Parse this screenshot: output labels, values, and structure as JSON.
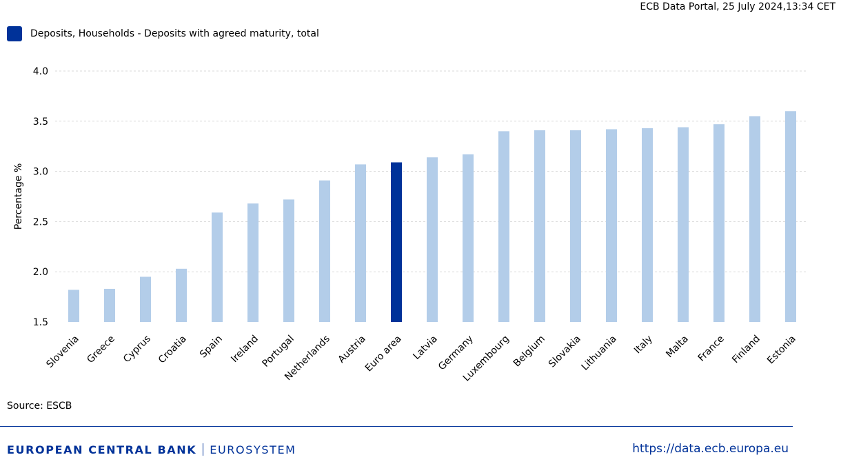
{
  "header": {
    "timestamp": "ECB Data Portal, 25 July 2024,13:34 CET"
  },
  "legend": {
    "label": "Deposits, Households - Deposits with agreed maturity, total",
    "color": "#003299"
  },
  "chart_data": {
    "type": "bar",
    "title": "",
    "xlabel": "",
    "ylabel": "Percentage %",
    "ylim": [
      1.5,
      4.0
    ],
    "yticks": [
      "1.5",
      "2.0",
      "2.5",
      "3.0",
      "3.5",
      "4.0"
    ],
    "grid": true,
    "categories": [
      "Slovenia",
      "Greece",
      "Cyprus",
      "Croatia",
      "Spain",
      "Ireland",
      "Portugal",
      "Netherlands",
      "Austria",
      "Euro area",
      "Latvia",
      "Germany",
      "Luxembourg",
      "Belgium",
      "Slovakia",
      "Lithuania",
      "Italy",
      "Malta",
      "France",
      "Finland",
      "Estonia"
    ],
    "series": [
      {
        "name": "Deposits, Households - Deposits with agreed maturity, total",
        "values": [
          1.82,
          1.83,
          1.95,
          2.03,
          2.59,
          2.68,
          2.72,
          2.91,
          3.07,
          3.09,
          3.14,
          3.17,
          3.4,
          3.41,
          3.41,
          3.42,
          3.43,
          3.44,
          3.47,
          3.55,
          3.6
        ]
      }
    ],
    "highlight_category": "Euro area",
    "colors": {
      "bar": "#b3cde9",
      "highlight": "#003299",
      "grid": "#d9d9d9"
    }
  },
  "source": {
    "text": "Source: ESCB"
  },
  "footer": {
    "brand_main": "EUROPEAN CENTRAL BANK",
    "brand_sub": "EUROSYSTEM",
    "url": "https://data.ecb.europa.eu",
    "brand_color": "#003299"
  }
}
